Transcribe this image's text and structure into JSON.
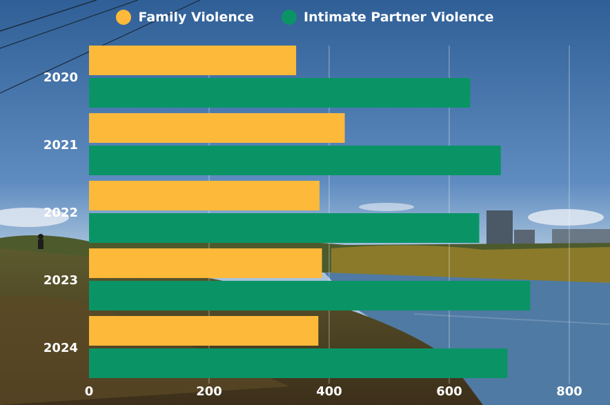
{
  "colors": {
    "family": "#FDB93A",
    "ipv": "#0A9466",
    "grid": "rgba(255,255,255,0.45)",
    "label": "#ffffff"
  },
  "chart_data": {
    "type": "bar",
    "orientation": "horizontal",
    "title": "",
    "xlabel": "",
    "ylabel": "",
    "categories": [
      "2020",
      "2021",
      "2022",
      "2023",
      "2024"
    ],
    "series": [
      {
        "name": "Family Violence",
        "values": [
          345,
          426,
          384,
          388,
          382
        ]
      },
      {
        "name": "Intimate Partner Violence",
        "values": [
          635,
          686,
          650,
          735,
          697
        ]
      }
    ],
    "xlim": [
      0,
      850
    ],
    "xticks": [
      0,
      200,
      400,
      600,
      800
    ],
    "grid": true,
    "legend_position": "top-center"
  },
  "legend": {
    "family_label": "Family Violence",
    "ipv_label": "Intimate Partner Violence"
  },
  "background": "photograph of a river valley with trees and city skyline under blue sky"
}
